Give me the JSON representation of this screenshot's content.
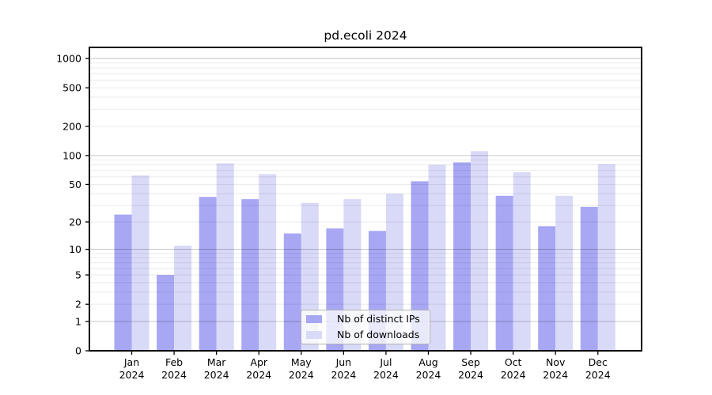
{
  "title": "pd.ecoli 2024",
  "chart_data": {
    "type": "bar",
    "title": "pd.ecoli 2024",
    "categories": [
      "Jan",
      "Feb",
      "Mar",
      "Apr",
      "May",
      "Jun",
      "Jul",
      "Aug",
      "Sep",
      "Oct",
      "Nov",
      "Dec"
    ],
    "x_second_line": "2024",
    "series": [
      {
        "name": "Nb of distinct IPs",
        "color": "#a7a7f4",
        "values": [
          24,
          5,
          37,
          35,
          15,
          17,
          16,
          54,
          85,
          38,
          18,
          29
        ]
      },
      {
        "name": "Nb of downloads",
        "color": "#d9d9f8",
        "values": [
          62,
          11,
          83,
          64,
          32,
          35,
          40,
          80,
          111,
          67,
          38,
          81
        ]
      }
    ],
    "xlabel": "",
    "ylabel": "",
    "yticks": [
      0,
      1,
      2,
      5,
      10,
      20,
      50,
      100,
      200,
      500,
      1000
    ],
    "yscale": "log10(value+1)",
    "ylim": [
      0,
      1300
    ],
    "grid": "horizontal major and log-minor",
    "legend_position": "lower center"
  },
  "colors": {
    "bar_distinct_ips": "#a7a7f4",
    "bar_downloads": "#d9d9f8",
    "axis": "#000000",
    "major_gridline": "#cccccc",
    "minor_gridline": "#ebebeb"
  }
}
